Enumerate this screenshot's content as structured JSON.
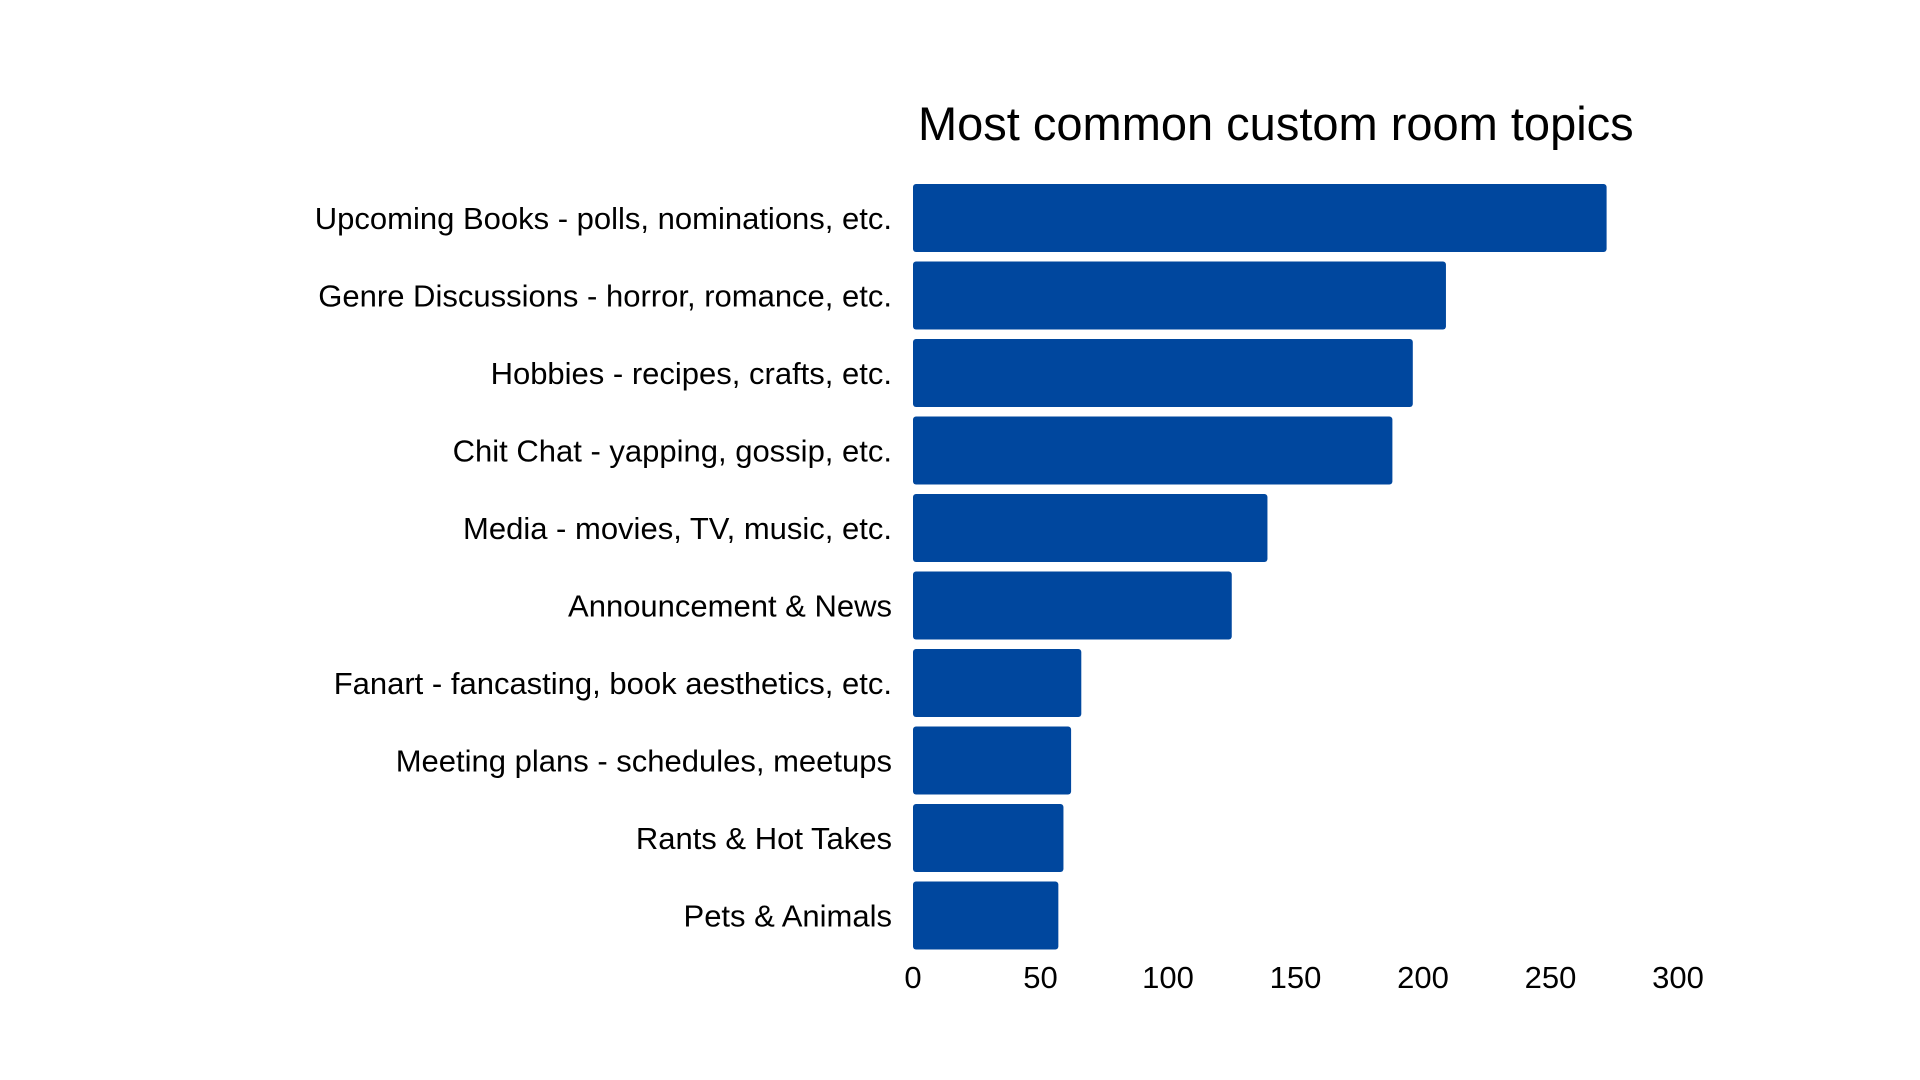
{
  "chart_data": {
    "type": "bar",
    "orientation": "horizontal",
    "title": "Most common custom room topics",
    "xlabel": "",
    "ylabel": "",
    "categories": [
      "Upcoming Books - polls, nominations, etc.",
      "Genre Discussions - horror, romance, etc.",
      "Hobbies - recipes, crafts, etc.",
      "Chit Chat - yapping, gossip, etc.",
      "Media - movies, TV, music, etc.",
      "Announcement & News",
      "Fanart - fancasting, book aesthetics, etc.",
      "Meeting plans - schedules, meetups",
      "Rants & Hot Takes",
      "Pets & Animals"
    ],
    "values": [
      272,
      209,
      196,
      188,
      139,
      125,
      66,
      62,
      59,
      57
    ],
    "xlim": [
      0,
      300
    ],
    "xticks": [
      0,
      50,
      100,
      150,
      200,
      250,
      300
    ],
    "grid": false,
    "legend": "none",
    "bar_color": "#00479E"
  }
}
